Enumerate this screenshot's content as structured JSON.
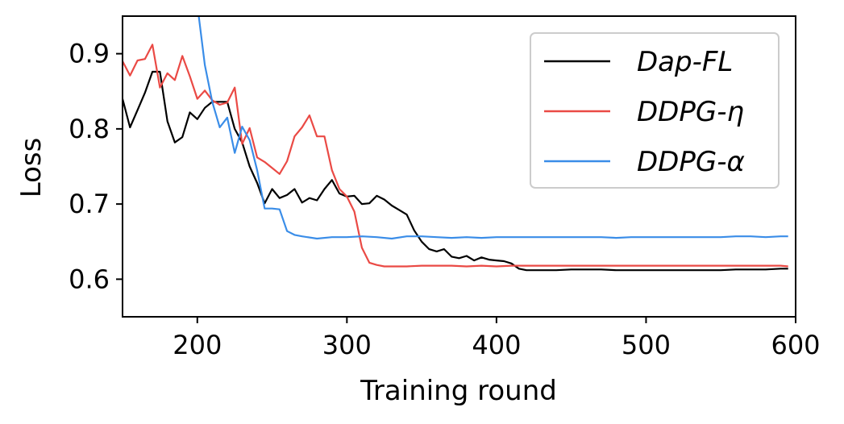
{
  "chart_data": {
    "type": "line",
    "xlabel": "Training round",
    "ylabel": "Loss",
    "xlim": [
      150,
      600
    ],
    "ylim": [
      0.55,
      0.95
    ],
    "xticks": [
      200,
      300,
      400,
      500,
      600
    ],
    "yticks": [
      0.6,
      0.7,
      0.8,
      0.9
    ],
    "xtick_labels": [
      "200",
      "300",
      "400",
      "500",
      "600"
    ],
    "ytick_labels": [
      "0.6",
      "0.7",
      "0.8",
      "0.9"
    ],
    "grid": false,
    "legend_position": "top-right",
    "series": [
      {
        "name": "Dap-FL",
        "color": "#000000",
        "x": [
          150,
          155,
          160,
          165,
          170,
          175,
          180,
          185,
          190,
          195,
          200,
          205,
          210,
          215,
          220,
          225,
          230,
          235,
          240,
          245,
          250,
          255,
          260,
          265,
          270,
          275,
          280,
          285,
          290,
          295,
          300,
          305,
          310,
          315,
          320,
          325,
          330,
          335,
          340,
          345,
          350,
          355,
          360,
          365,
          370,
          375,
          380,
          385,
          390,
          395,
          400,
          405,
          410,
          415,
          420,
          425,
          430,
          440,
          450,
          460,
          470,
          480,
          490,
          500,
          510,
          520,
          530,
          540,
          550,
          560,
          570,
          580,
          590,
          595
        ],
        "y": [
          0.84,
          0.802,
          0.825,
          0.848,
          0.876,
          0.876,
          0.81,
          0.782,
          0.789,
          0.822,
          0.813,
          0.828,
          0.836,
          0.836,
          0.836,
          0.8,
          0.782,
          0.75,
          0.728,
          0.701,
          0.72,
          0.708,
          0.712,
          0.72,
          0.702,
          0.708,
          0.705,
          0.72,
          0.732,
          0.714,
          0.71,
          0.711,
          0.7,
          0.701,
          0.711,
          0.706,
          0.698,
          0.692,
          0.686,
          0.665,
          0.65,
          0.64,
          0.637,
          0.64,
          0.63,
          0.628,
          0.631,
          0.625,
          0.629,
          0.626,
          0.625,
          0.624,
          0.621,
          0.614,
          0.612,
          0.612,
          0.612,
          0.612,
          0.613,
          0.613,
          0.613,
          0.612,
          0.612,
          0.612,
          0.612,
          0.612,
          0.612,
          0.612,
          0.612,
          0.613,
          0.613,
          0.613,
          0.614,
          0.614
        ]
      },
      {
        "name": "DDPG-η",
        "color": "#ea4a45",
        "x": [
          150,
          155,
          160,
          165,
          170,
          175,
          180,
          185,
          190,
          195,
          200,
          205,
          210,
          215,
          220,
          225,
          230,
          235,
          240,
          245,
          250,
          255,
          260,
          265,
          270,
          275,
          280,
          285,
          290,
          295,
          300,
          305,
          310,
          315,
          320,
          325,
          330,
          340,
          350,
          360,
          370,
          380,
          390,
          400,
          410,
          420,
          430,
          440,
          450,
          460,
          470,
          480,
          490,
          500,
          510,
          520,
          530,
          540,
          550,
          560,
          570,
          580,
          590,
          595
        ],
        "y": [
          0.89,
          0.871,
          0.891,
          0.893,
          0.912,
          0.855,
          0.874,
          0.865,
          0.897,
          0.87,
          0.84,
          0.851,
          0.838,
          0.832,
          0.835,
          0.855,
          0.78,
          0.801,
          0.762,
          0.756,
          0.748,
          0.74,
          0.757,
          0.79,
          0.802,
          0.818,
          0.79,
          0.79,
          0.745,
          0.72,
          0.71,
          0.69,
          0.642,
          0.622,
          0.619,
          0.617,
          0.617,
          0.617,
          0.618,
          0.618,
          0.618,
          0.617,
          0.618,
          0.617,
          0.618,
          0.618,
          0.618,
          0.618,
          0.618,
          0.618,
          0.618,
          0.618,
          0.618,
          0.618,
          0.618,
          0.618,
          0.618,
          0.618,
          0.618,
          0.618,
          0.618,
          0.618,
          0.618,
          0.617
        ]
      },
      {
        "name": "DDPG-α",
        "color": "#3a8de8",
        "x": [
          200,
          205,
          210,
          215,
          220,
          225,
          230,
          235,
          240,
          245,
          250,
          255,
          260,
          265,
          270,
          280,
          290,
          300,
          310,
          320,
          330,
          340,
          350,
          360,
          370,
          380,
          390,
          400,
          410,
          420,
          430,
          440,
          450,
          460,
          470,
          480,
          490,
          500,
          510,
          520,
          530,
          540,
          550,
          560,
          570,
          580,
          590,
          595
        ],
        "y": [
          0.965,
          0.885,
          0.836,
          0.802,
          0.815,
          0.768,
          0.803,
          0.785,
          0.745,
          0.694,
          0.694,
          0.693,
          0.664,
          0.659,
          0.657,
          0.654,
          0.656,
          0.656,
          0.657,
          0.656,
          0.654,
          0.657,
          0.657,
          0.656,
          0.655,
          0.656,
          0.655,
          0.656,
          0.656,
          0.656,
          0.656,
          0.656,
          0.656,
          0.656,
          0.656,
          0.655,
          0.656,
          0.656,
          0.656,
          0.656,
          0.656,
          0.656,
          0.656,
          0.657,
          0.657,
          0.656,
          0.657,
          0.657
        ]
      }
    ]
  }
}
